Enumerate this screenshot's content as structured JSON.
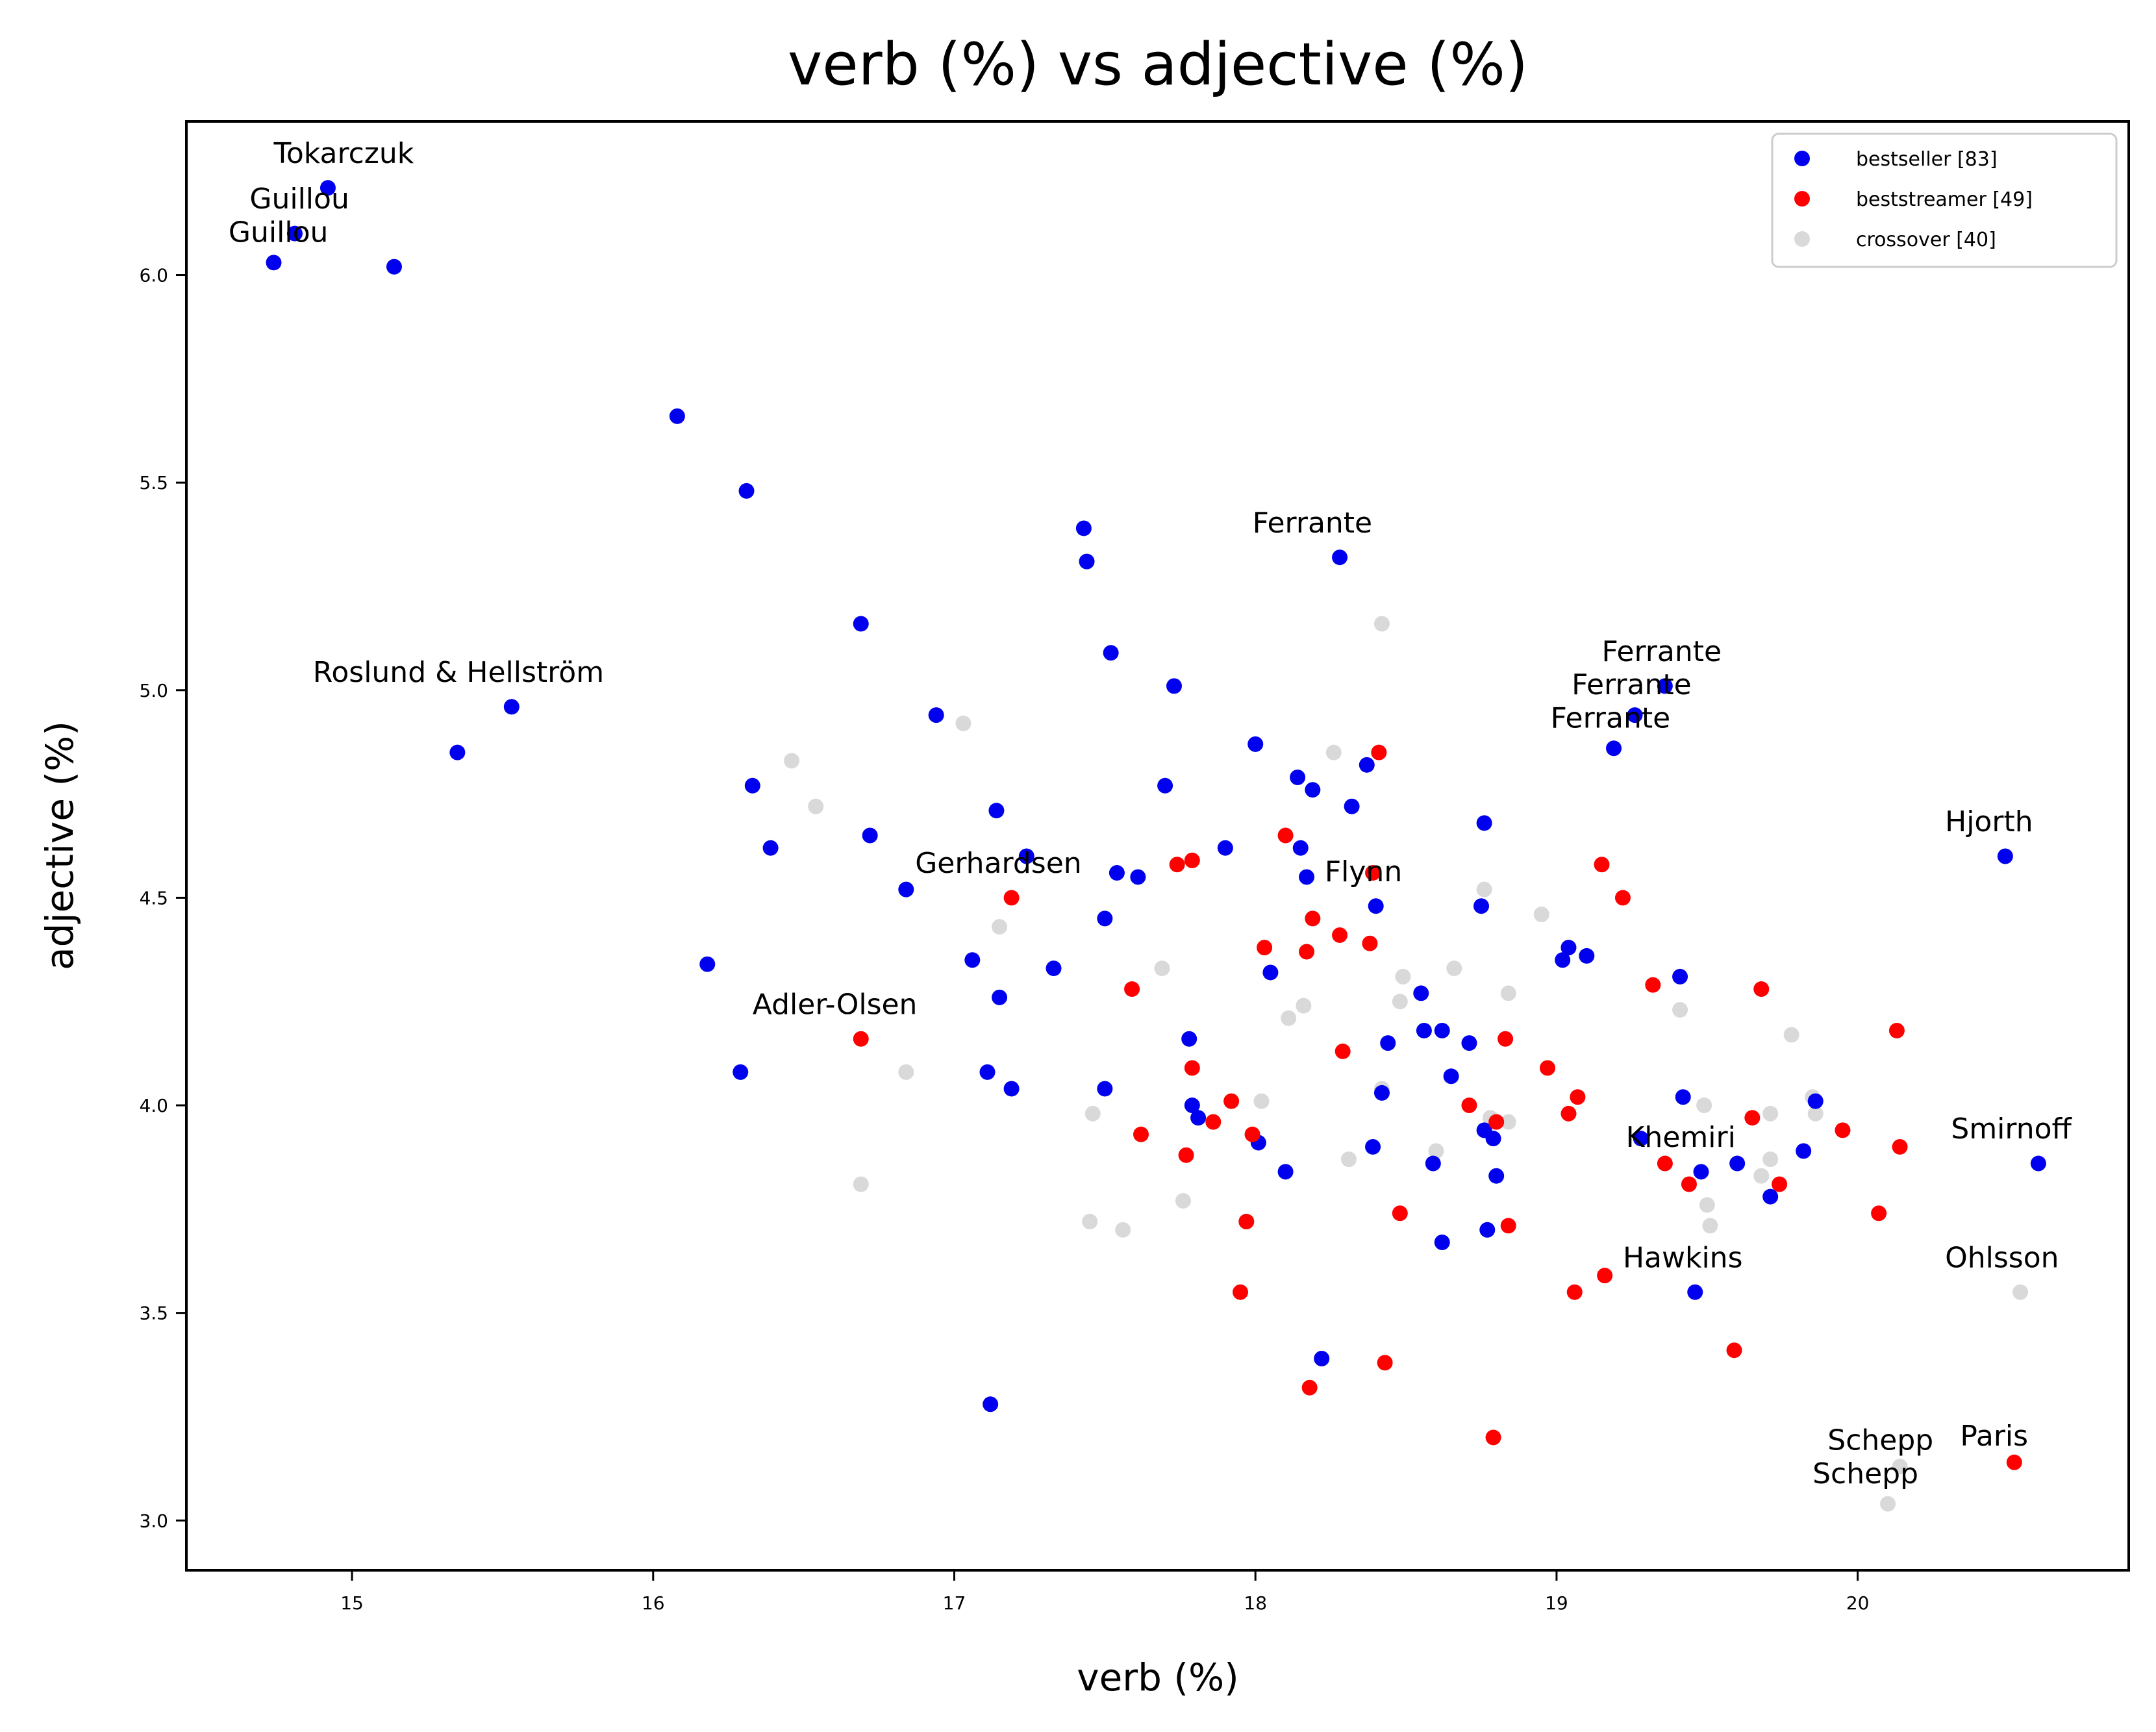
{
  "chart_data": {
    "type": "scatter",
    "title": "verb (%) vs adjective (%)",
    "xlabel": "verb (%)",
    "ylabel": "adjective (%)",
    "xlim": [
      14.45,
      20.9
    ],
    "ylim": [
      2.88,
      6.37
    ],
    "xticks": [
      15,
      16,
      17,
      18,
      19,
      20
    ],
    "yticks": [
      3.0,
      3.5,
      4.0,
      4.5,
      5.0,
      5.5,
      6.0
    ],
    "xtick_labels": [
      "15",
      "16",
      "17",
      "18",
      "19",
      "20"
    ],
    "ytick_labels": [
      "3.0",
      "3.5",
      "4.0",
      "4.5",
      "5.0",
      "5.5",
      "6.0"
    ],
    "grid": false,
    "legend": "top-right",
    "series": [
      {
        "name": "bestseller [83]",
        "color": "#0000ee",
        "points": [
          [
            14.92,
            6.21
          ],
          [
            14.81,
            6.1
          ],
          [
            14.74,
            6.03
          ],
          [
            15.14,
            6.02
          ],
          [
            15.35,
            4.85
          ],
          [
            15.53,
            4.96
          ],
          [
            16.08,
            5.66
          ],
          [
            16.31,
            5.48
          ],
          [
            16.18,
            4.34
          ],
          [
            16.29,
            4.08
          ],
          [
            16.33,
            4.77
          ],
          [
            16.39,
            4.62
          ],
          [
            16.69,
            5.16
          ],
          [
            16.72,
            4.65
          ],
          [
            16.84,
            4.52
          ],
          [
            16.94,
            4.94
          ],
          [
            17.06,
            4.35
          ],
          [
            17.11,
            4.08
          ],
          [
            17.12,
            3.28
          ],
          [
            17.14,
            4.71
          ],
          [
            17.15,
            4.26
          ],
          [
            17.19,
            4.04
          ],
          [
            17.24,
            4.6
          ],
          [
            17.33,
            4.33
          ],
          [
            17.43,
            5.39
          ],
          [
            17.44,
            5.31
          ],
          [
            17.5,
            4.45
          ],
          [
            17.5,
            4.04
          ],
          [
            17.52,
            5.09
          ],
          [
            17.54,
            4.56
          ],
          [
            17.61,
            4.55
          ],
          [
            17.7,
            4.77
          ],
          [
            17.73,
            5.01
          ],
          [
            17.78,
            4.16
          ],
          [
            17.79,
            4.0
          ],
          [
            17.81,
            3.97
          ],
          [
            17.9,
            4.62
          ],
          [
            18.0,
            4.87
          ],
          [
            18.01,
            3.91
          ],
          [
            18.05,
            4.32
          ],
          [
            18.1,
            3.84
          ],
          [
            18.14,
            4.79
          ],
          [
            18.15,
            4.62
          ],
          [
            18.17,
            4.55
          ],
          [
            18.19,
            4.76
          ],
          [
            18.22,
            3.39
          ],
          [
            18.28,
            5.32
          ],
          [
            18.32,
            4.72
          ],
          [
            18.37,
            4.82
          ],
          [
            18.39,
            3.9
          ],
          [
            18.4,
            4.48
          ],
          [
            18.42,
            4.03
          ],
          [
            18.44,
            4.15
          ],
          [
            18.55,
            4.27
          ],
          [
            18.56,
            4.18
          ],
          [
            18.59,
            3.86
          ],
          [
            18.62,
            4.18
          ],
          [
            18.62,
            3.67
          ],
          [
            18.65,
            4.07
          ],
          [
            18.71,
            4.15
          ],
          [
            18.75,
            4.48
          ],
          [
            18.76,
            4.68
          ],
          [
            18.76,
            3.94
          ],
          [
            18.77,
            3.7
          ],
          [
            18.79,
            3.92
          ],
          [
            18.8,
            3.83
          ],
          [
            19.02,
            4.35
          ],
          [
            19.04,
            4.38
          ],
          [
            19.1,
            4.36
          ],
          [
            19.19,
            4.86
          ],
          [
            19.26,
            4.94
          ],
          [
            19.28,
            3.92
          ],
          [
            19.36,
            5.01
          ],
          [
            19.41,
            4.31
          ],
          [
            19.42,
            4.02
          ],
          [
            19.46,
            3.55
          ],
          [
            19.48,
            3.84
          ],
          [
            19.6,
            3.86
          ],
          [
            19.71,
            3.78
          ],
          [
            19.82,
            3.89
          ],
          [
            19.86,
            4.01
          ],
          [
            20.49,
            4.6
          ],
          [
            20.6,
            3.86
          ]
        ]
      },
      {
        "name": "beststreamer [49]",
        "color": "#ff0000",
        "points": [
          [
            16.69,
            4.16
          ],
          [
            17.19,
            4.5
          ],
          [
            17.59,
            4.28
          ],
          [
            17.62,
            3.93
          ],
          [
            17.74,
            4.58
          ],
          [
            17.77,
            3.88
          ],
          [
            17.79,
            4.59
          ],
          [
            17.79,
            4.09
          ],
          [
            17.86,
            3.96
          ],
          [
            17.92,
            4.01
          ],
          [
            17.95,
            3.55
          ],
          [
            17.97,
            3.72
          ],
          [
            17.99,
            3.93
          ],
          [
            18.03,
            4.38
          ],
          [
            18.1,
            4.65
          ],
          [
            18.17,
            4.37
          ],
          [
            18.18,
            3.32
          ],
          [
            18.19,
            4.45
          ],
          [
            18.28,
            4.41
          ],
          [
            18.29,
            4.13
          ],
          [
            18.38,
            4.39
          ],
          [
            18.39,
            4.56
          ],
          [
            18.41,
            4.85
          ],
          [
            18.43,
            3.38
          ],
          [
            18.48,
            3.74
          ],
          [
            18.71,
            4.0
          ],
          [
            18.79,
            3.2
          ],
          [
            18.8,
            3.96
          ],
          [
            18.83,
            4.16
          ],
          [
            18.84,
            3.71
          ],
          [
            18.97,
            4.09
          ],
          [
            19.04,
            3.98
          ],
          [
            19.06,
            3.55
          ],
          [
            19.07,
            4.02
          ],
          [
            19.15,
            4.58
          ],
          [
            19.16,
            3.59
          ],
          [
            19.22,
            4.5
          ],
          [
            19.32,
            4.29
          ],
          [
            19.36,
            3.86
          ],
          [
            19.44,
            3.81
          ],
          [
            19.59,
            3.41
          ],
          [
            19.65,
            3.97
          ],
          [
            19.68,
            4.28
          ],
          [
            19.74,
            3.81
          ],
          [
            19.95,
            3.94
          ],
          [
            20.07,
            3.74
          ],
          [
            20.13,
            4.18
          ],
          [
            20.14,
            3.9
          ],
          [
            20.52,
            3.14
          ]
        ]
      },
      {
        "name": "crossover [40]",
        "color": "#d9d9d9",
        "points": [
          [
            16.46,
            4.83
          ],
          [
            16.54,
            4.72
          ],
          [
            16.69,
            3.81
          ],
          [
            16.84,
            4.08
          ],
          [
            17.03,
            4.92
          ],
          [
            17.15,
            4.43
          ],
          [
            17.46,
            3.98
          ],
          [
            17.45,
            3.72
          ],
          [
            17.56,
            3.7
          ],
          [
            17.69,
            4.33
          ],
          [
            17.76,
            3.77
          ],
          [
            18.02,
            4.01
          ],
          [
            18.11,
            4.21
          ],
          [
            18.16,
            4.24
          ],
          [
            18.26,
            4.85
          ],
          [
            18.31,
            3.87
          ],
          [
            18.42,
            5.16
          ],
          [
            18.42,
            4.04
          ],
          [
            18.48,
            4.25
          ],
          [
            18.49,
            4.31
          ],
          [
            18.6,
            3.89
          ],
          [
            18.66,
            4.33
          ],
          [
            18.76,
            4.52
          ],
          [
            18.84,
            4.27
          ],
          [
            18.95,
            4.46
          ],
          [
            19.41,
            4.23
          ],
          [
            19.49,
            4.0
          ],
          [
            19.5,
            3.76
          ],
          [
            19.51,
            3.71
          ],
          [
            19.68,
            3.83
          ],
          [
            19.71,
            3.98
          ],
          [
            19.71,
            3.87
          ],
          [
            19.78,
            4.17
          ],
          [
            19.86,
            3.98
          ],
          [
            20.1,
            3.04
          ],
          [
            20.14,
            3.13
          ],
          [
            20.54,
            3.55
          ],
          [
            18.78,
            3.97
          ],
          [
            18.84,
            3.96
          ],
          [
            19.85,
            4.02
          ]
        ]
      }
    ],
    "annotations": [
      {
        "text": "Tokarczuk",
        "x": 14.74,
        "y": 6.27
      },
      {
        "text": "Guillou",
        "x": 14.66,
        "y": 6.16
      },
      {
        "text": "Guillou",
        "x": 14.59,
        "y": 6.08
      },
      {
        "text": "Roslund & Hellström",
        "x": 14.87,
        "y": 5.02
      },
      {
        "text": "Ferrante",
        "x": 17.99,
        "y": 5.38
      },
      {
        "text": "Ferrante",
        "x": 19.15,
        "y": 5.07
      },
      {
        "text": "Ferrante",
        "x": 19.05,
        "y": 4.99
      },
      {
        "text": "Ferrante",
        "x": 18.98,
        "y": 4.91
      },
      {
        "text": "Hjorth",
        "x": 20.29,
        "y": 4.66
      },
      {
        "text": "Gerhardsen",
        "x": 16.87,
        "y": 4.56
      },
      {
        "text": "Flynn",
        "x": 18.23,
        "y": 4.54
      },
      {
        "text": "Adler-Olsen",
        "x": 16.33,
        "y": 4.22
      },
      {
        "text": "Khemiri",
        "x": 19.23,
        "y": 3.9
      },
      {
        "text": "Smirnoff",
        "x": 20.31,
        "y": 3.92
      },
      {
        "text": "Hawkins",
        "x": 19.22,
        "y": 3.61
      },
      {
        "text": "Ohlsson",
        "x": 20.29,
        "y": 3.61
      },
      {
        "text": "Schepp",
        "x": 19.9,
        "y": 3.17
      },
      {
        "text": "Paris",
        "x": 20.34,
        "y": 3.18
      },
      {
        "text": "Schepp",
        "x": 19.85,
        "y": 3.09
      }
    ]
  }
}
